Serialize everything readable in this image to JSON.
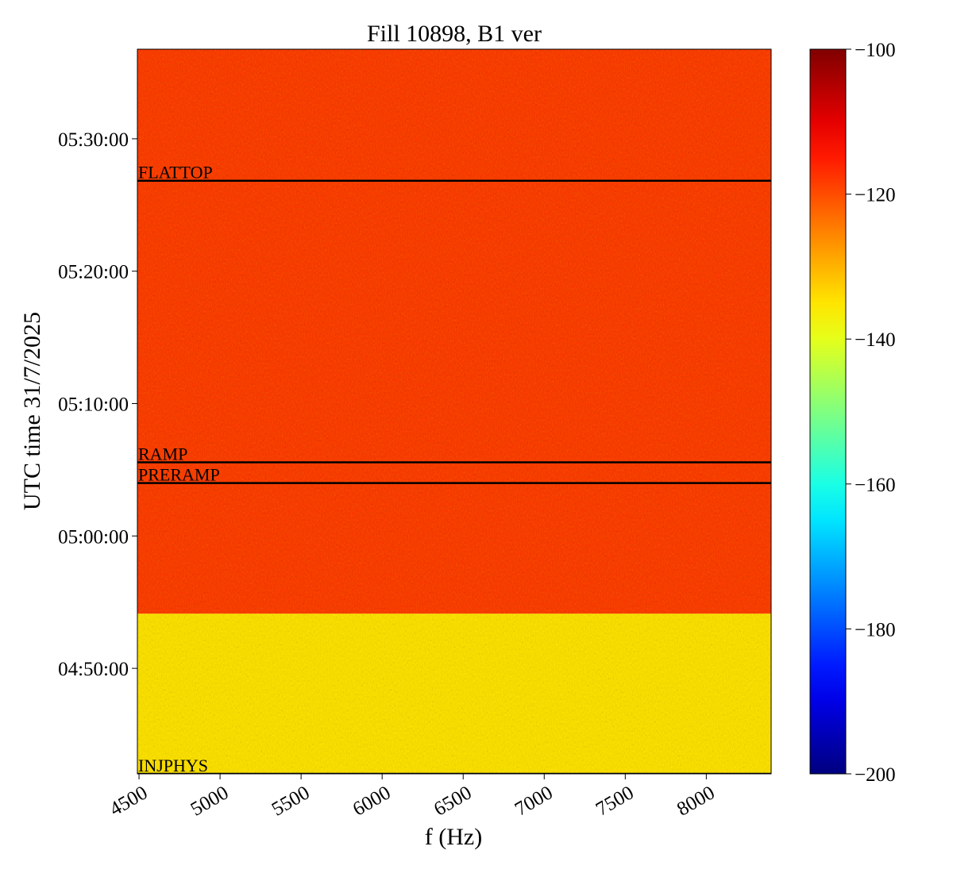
{
  "chart_data": {
    "type": "spectrogram",
    "title": "Fill 10898, B1 ver",
    "x_label": "f (Hz)",
    "y_label": "UTC time 31/7/2025",
    "xlim": [
      4490,
      8400
    ],
    "xticks": [
      4500,
      5000,
      5500,
      6000,
      6500,
      7000,
      7500,
      8000
    ],
    "ylim": [
      16922,
      20206
    ],
    "yticks": [
      {
        "value": 17400,
        "label": "04:50:00"
      },
      {
        "value": 18000,
        "label": "05:00:00"
      },
      {
        "value": 18600,
        "label": "05:10:00"
      },
      {
        "value": 19200,
        "label": "05:20:00"
      },
      {
        "value": 19800,
        "label": "05:30:00"
      }
    ],
    "colormap": "jet",
    "clim": [
      -200,
      -100
    ],
    "cticks": [
      -200,
      -180,
      -160,
      -140,
      -120,
      -100
    ],
    "regions": [
      {
        "t_start": 16922,
        "t_end": 17648,
        "level": -135
      },
      {
        "t_start": 17648,
        "t_end": 20206,
        "level": -117
      }
    ],
    "events": [
      {
        "label": "FLATTOP",
        "time": 19610
      },
      {
        "label": "RAMP",
        "time": 18334
      },
      {
        "label": "PRERAMP",
        "time": 18240
      },
      {
        "label": "INJPHYS",
        "time": 16922
      }
    ]
  }
}
